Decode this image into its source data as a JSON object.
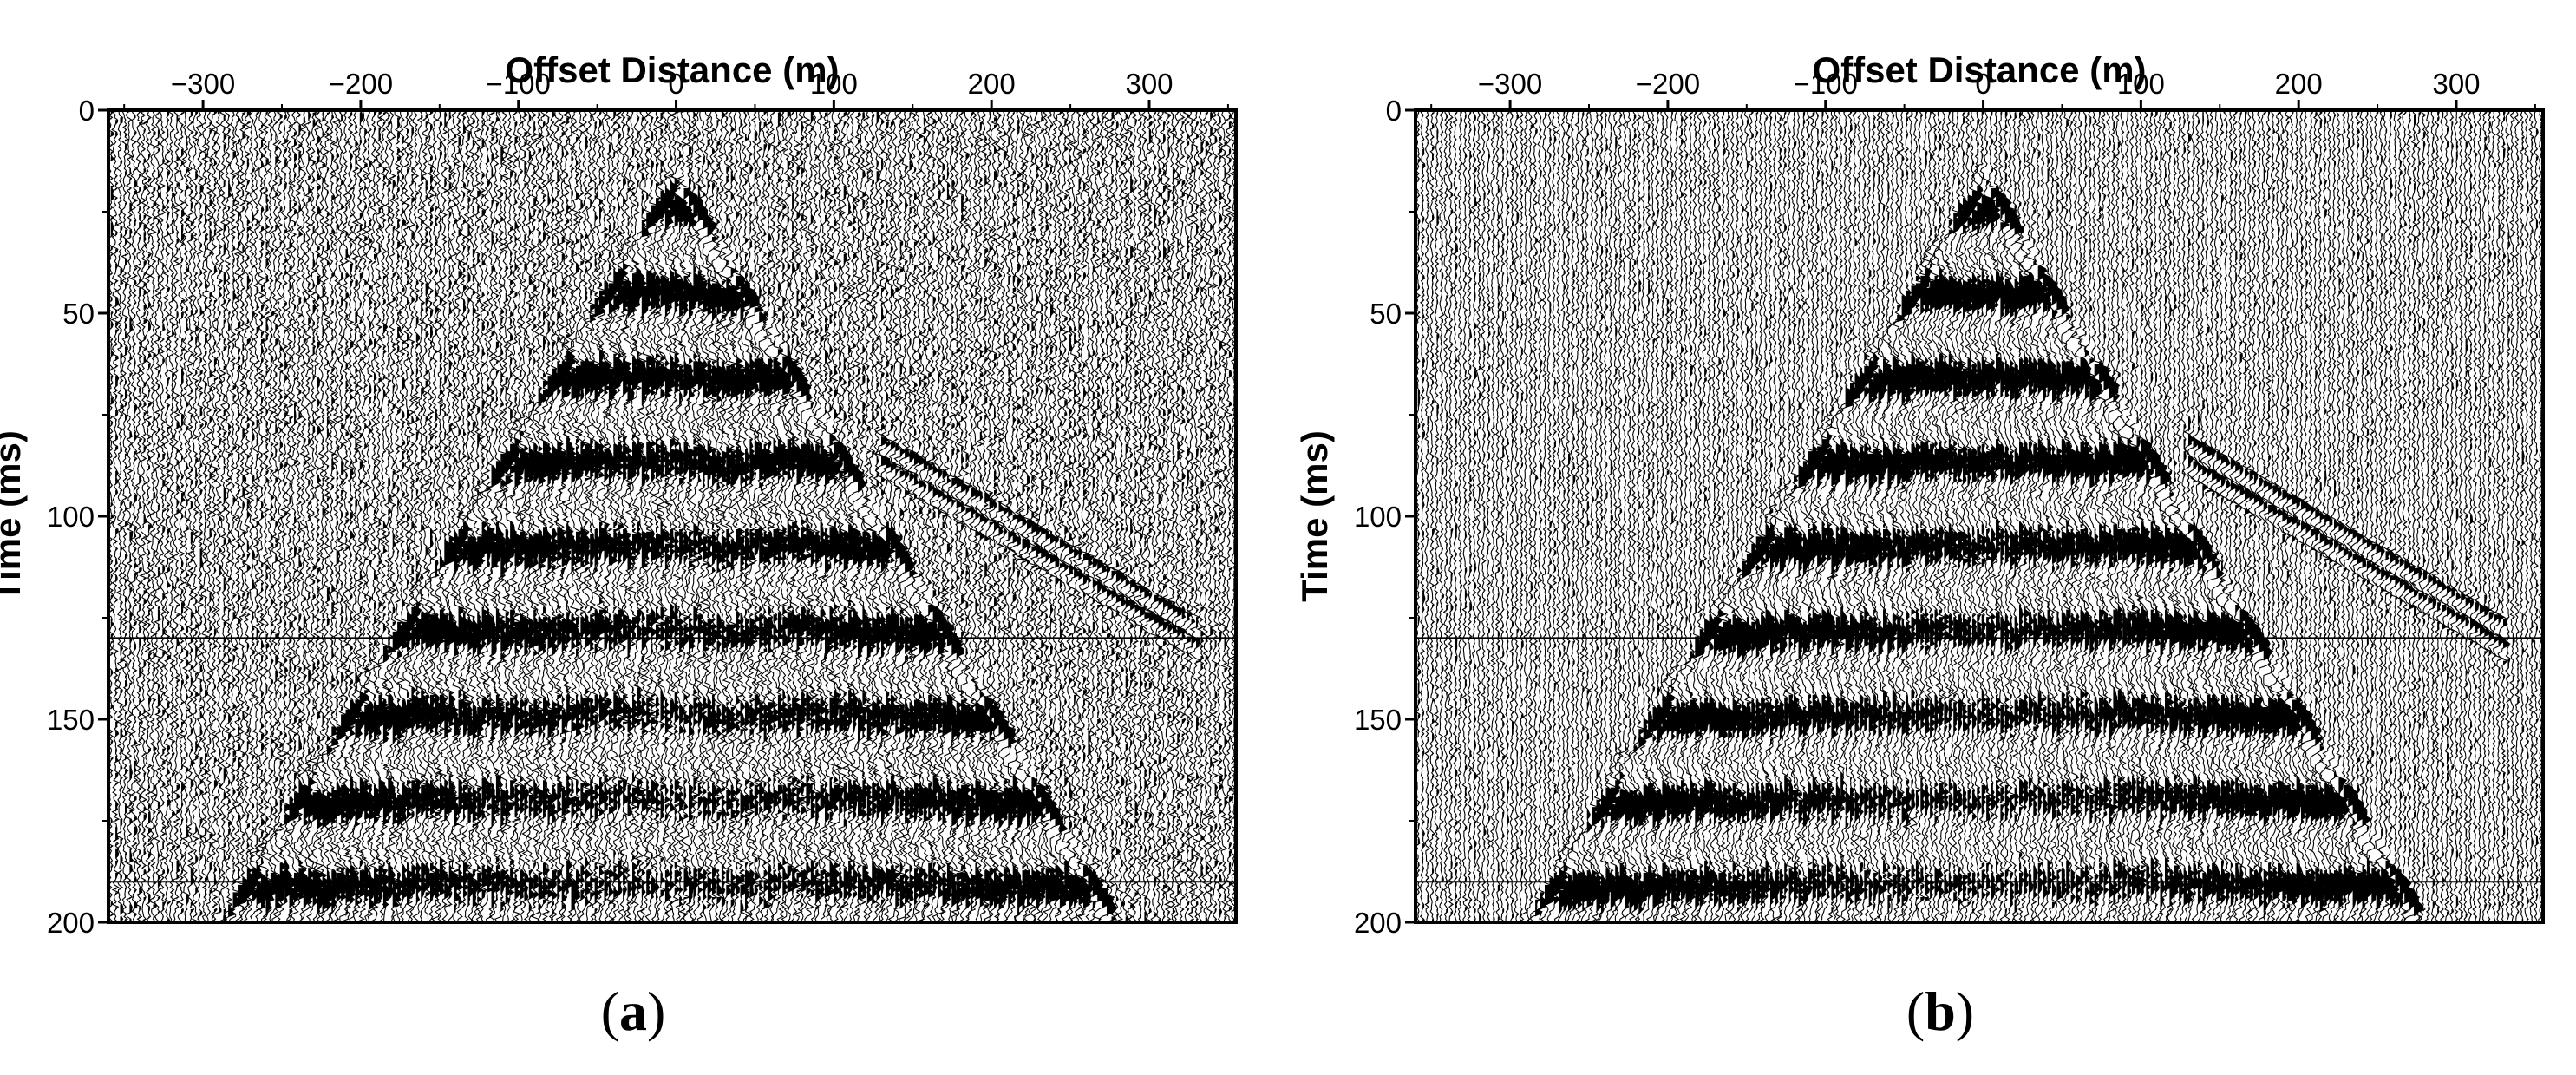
{
  "figure": {
    "panels": [
      {
        "caption_open": "(",
        "caption_letter": "a",
        "caption_close": ")"
      },
      {
        "caption_open": "(",
        "caption_letter": "b",
        "caption_close": ")"
      }
    ]
  },
  "chart_data": [
    {
      "type": "seismic-wiggle",
      "xlabel": "Offset Distance (m)",
      "ylabel": "Time (ms)",
      "xlim": [
        -360,
        355
      ],
      "ylim": [
        0,
        200
      ],
      "y_inverted": true,
      "x_axis_position": "top",
      "x_ticks": [
        -300,
        -200,
        -100,
        0,
        100,
        200,
        300
      ],
      "x_tick_labels": [
        "−300",
        "−200",
        "−100",
        "0",
        "100",
        "200",
        "300"
      ],
      "y_ticks": [
        0,
        50,
        100,
        150,
        200
      ],
      "y_tick_labels": [
        "0",
        "50",
        "100",
        "150",
        "200"
      ],
      "horizontal_lines_ms": [
        130,
        190
      ],
      "apex": {
        "offset": 0,
        "time": 15
      },
      "first_arrival_left": {
        "offset": -290,
        "time": 200
      },
      "first_arrival_right": {
        "offset": 280,
        "time": 200
      },
      "secondary_event": {
        "from_offset": 130,
        "from_time": 85,
        "to_offset": 330,
        "to_time": 130
      },
      "noise_level": "high",
      "colors": {
        "wiggle": "#000000",
        "background": "#ffffff"
      }
    },
    {
      "type": "seismic-wiggle",
      "xlabel": "Offset Distance (m)",
      "ylabel": "Time (ms)",
      "xlim": [
        -360,
        355
      ],
      "ylim": [
        0,
        200
      ],
      "y_inverted": true,
      "x_axis_position": "top",
      "x_ticks": [
        -300,
        -200,
        -100,
        0,
        100,
        200,
        300
      ],
      "x_tick_labels": [
        "−300",
        "−200",
        "−100",
        "0",
        "100",
        "200",
        "300"
      ],
      "y_ticks": [
        0,
        50,
        100,
        150,
        200
      ],
      "y_tick_labels": [
        "0",
        "50",
        "100",
        "150",
        "200"
      ],
      "horizontal_lines_ms": [
        130,
        190
      ],
      "apex": {
        "offset": 0,
        "time": 15
      },
      "first_arrival_left": {
        "offset": -290,
        "time": 200
      },
      "first_arrival_right": {
        "offset": 280,
        "time": 200
      },
      "secondary_event": {
        "from_offset": 130,
        "from_time": 85,
        "to_offset": 330,
        "to_time": 130
      },
      "noise_level": "moderate",
      "colors": {
        "wiggle": "#000000",
        "background": "#ffffff"
      }
    }
  ]
}
